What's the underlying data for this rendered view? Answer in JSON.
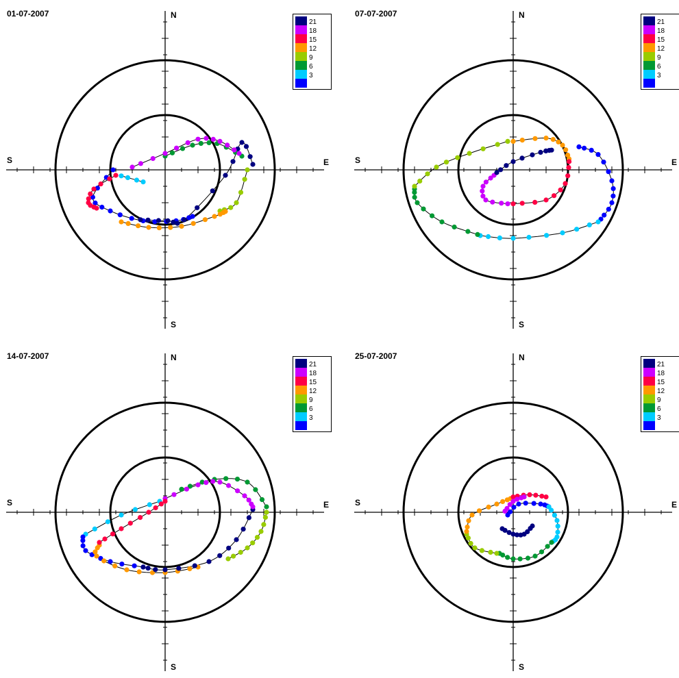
{
  "axis_labels": {
    "north": "N",
    "south": "S",
    "east": "E",
    "west": "S"
  },
  "legend": {
    "entries": [
      {
        "label": "21",
        "color": "#000080"
      },
      {
        "label": "18",
        "color": "#cc00ff"
      },
      {
        "label": "15",
        "color": "#ff0044"
      },
      {
        "label": "12",
        "color": "#ff9900"
      },
      {
        "label": "9",
        "color": "#99cc00"
      },
      {
        "label": "6",
        "color": "#009933"
      },
      {
        "label": "3",
        "color": "#00ccff"
      },
      {
        "label": "",
        "color": "#0000ff"
      }
    ]
  },
  "chart_data": [
    {
      "type": "scatter",
      "title": "01-07-2007",
      "circles": [
        1,
        2
      ],
      "xlim": [
        -3,
        3
      ],
      "ylim": [
        -3,
        3
      ],
      "grid": false,
      "legend_position": "top-right",
      "segments": [
        {
          "series": "3",
          "color": "#00ccff",
          "points": [
            [
              -0.4,
              -0.22
            ],
            [
              -0.8,
              -0.11
            ]
          ]
        },
        {
          "series": "",
          "color": "#0000ff",
          "points": [
            [
              -0.95,
              0.0
            ],
            [
              -1.32,
              -0.5
            ],
            [
              -1.0,
              -0.75
            ],
            [
              -0.4,
              -0.93
            ],
            [
              0.2,
              -0.93
            ],
            [
              0.5,
              -0.85
            ]
          ]
        },
        {
          "series": "21",
          "color": "#000080",
          "points": [
            [
              -0.45,
              -0.91
            ],
            [
              0.05,
              -0.93
            ],
            [
              0.35,
              -0.91
            ],
            [
              1.1,
              -0.1
            ],
            [
              1.4,
              0.5
            ],
            [
              1.6,
              0.1
            ]
          ]
        },
        {
          "series": "6",
          "color": "#009933",
          "points": [
            [
              0.0,
              0.25
            ],
            [
              0.5,
              0.45
            ],
            [
              0.95,
              0.48
            ],
            [
              1.4,
              0.25
            ]
          ]
        },
        {
          "series": "9",
          "color": "#99cc00",
          "points": [
            [
              1.5,
              0.0
            ],
            [
              1.3,
              -0.6
            ],
            [
              1.0,
              -0.75
            ]
          ]
        },
        {
          "series": "12",
          "color": "#ff9900",
          "points": [
            [
              -0.8,
              -0.95
            ],
            [
              -0.3,
              -1.05
            ],
            [
              0.3,
              -1.03
            ],
            [
              0.9,
              -0.85
            ],
            [
              1.1,
              -0.76
            ]
          ]
        },
        {
          "series": "15",
          "color": "#ff0044",
          "points": [
            [
              -0.9,
              -0.1
            ],
            [
              -1.3,
              -0.35
            ],
            [
              -1.4,
              -0.6
            ],
            [
              -1.25,
              -0.7
            ]
          ]
        },
        {
          "series": "18",
          "color": "#cc00ff",
          "points": [
            [
              -0.6,
              0.05
            ],
            [
              0.0,
              0.3
            ],
            [
              0.6,
              0.56
            ],
            [
              1.0,
              0.52
            ],
            [
              1.35,
              0.3
            ]
          ]
        }
      ]
    },
    {
      "type": "scatter",
      "title": "07-07-2007",
      "circles": [
        1,
        2
      ],
      "xlim": [
        -3,
        3
      ],
      "ylim": [
        -3,
        3
      ],
      "grid": false,
      "legend_position": "top-right",
      "segments": [
        {
          "series": "",
          "color": "#0000ff",
          "points": [
            [
              1.2,
              0.42
            ],
            [
              1.55,
              0.28
            ],
            [
              1.8,
              -0.2
            ],
            [
              1.8,
              -0.6
            ],
            [
              1.6,
              -0.9
            ]
          ]
        },
        {
          "series": "3",
          "color": "#00ccff",
          "points": [
            [
              1.55,
              -0.95
            ],
            [
              0.9,
              -1.15
            ],
            [
              0.0,
              -1.25
            ],
            [
              -0.6,
              -1.2
            ]
          ]
        },
        {
          "series": "6",
          "color": "#009933",
          "points": [
            [
              -0.65,
              -1.18
            ],
            [
              -1.3,
              -0.95
            ],
            [
              -1.75,
              -0.6
            ],
            [
              -1.8,
              -0.35
            ]
          ]
        },
        {
          "series": "9",
          "color": "#99cc00",
          "points": [
            [
              -1.8,
              -0.3
            ],
            [
              -1.4,
              0.05
            ],
            [
              -0.8,
              0.3
            ],
            [
              -0.1,
              0.52
            ]
          ]
        },
        {
          "series": "12",
          "color": "#ff9900",
          "points": [
            [
              0.0,
              0.52
            ],
            [
              0.6,
              0.58
            ],
            [
              0.9,
              0.45
            ],
            [
              1.02,
              0.2
            ]
          ]
        },
        {
          "series": "15",
          "color": "#ff0044",
          "points": [
            [
              1.02,
              0.15
            ],
            [
              0.95,
              -0.25
            ],
            [
              0.6,
              -0.55
            ],
            [
              0.0,
              -0.62
            ]
          ]
        },
        {
          "series": "18",
          "color": "#cc00ff",
          "points": [
            [
              -0.1,
              -0.62
            ],
            [
              -0.5,
              -0.55
            ],
            [
              -0.55,
              -0.3
            ],
            [
              -0.35,
              -0.1
            ]
          ]
        },
        {
          "series": "21",
          "color": "#000080",
          "points": [
            [
              -0.3,
              -0.05
            ],
            [
              0.0,
              0.15
            ],
            [
              0.5,
              0.32
            ],
            [
              0.7,
              0.36
            ]
          ]
        }
      ]
    },
    {
      "type": "scatter",
      "title": "14-07-2007",
      "circles": [
        1,
        2
      ],
      "xlim": [
        -3,
        3
      ],
      "ylim": [
        -3,
        3
      ],
      "grid": false,
      "legend_position": "top-right",
      "segments": [
        {
          "series": "3",
          "color": "#00ccff",
          "points": [
            [
              -0.1,
              0.2
            ],
            [
              -0.8,
              -0.05
            ],
            [
              -1.45,
              -0.4
            ]
          ]
        },
        {
          "series": "",
          "color": "#0000ff",
          "points": [
            [
              -1.5,
              -0.45
            ],
            [
              -1.45,
              -0.7
            ],
            [
              -1.0,
              -0.9
            ],
            [
              -0.4,
              -1.0
            ]
          ]
        },
        {
          "series": "12",
          "color": "#ff9900",
          "points": [
            [
              -1.2,
              -0.6
            ],
            [
              -1.25,
              -0.8
            ],
            [
              -0.7,
              -1.05
            ],
            [
              0.0,
              -1.1
            ],
            [
              0.6,
              -1.0
            ]
          ]
        },
        {
          "series": "21",
          "color": "#000080",
          "points": [
            [
              -0.4,
              -1.0
            ],
            [
              0.0,
              -1.05
            ],
            [
              0.8,
              -0.9
            ],
            [
              1.3,
              -0.5
            ],
            [
              1.6,
              0.05
            ]
          ]
        },
        {
          "series": "9",
          "color": "#99cc00",
          "points": [
            [
              1.85,
              0.0
            ],
            [
              1.75,
              -0.35
            ],
            [
              1.5,
              -0.65
            ],
            [
              1.15,
              -0.85
            ]
          ]
        },
        {
          "series": "6",
          "color": "#009933",
          "points": [
            [
              0.3,
              0.42
            ],
            [
              0.9,
              0.6
            ],
            [
              1.5,
              0.55
            ],
            [
              1.85,
              0.1
            ]
          ]
        },
        {
          "series": "18",
          "color": "#cc00ff",
          "points": [
            [
              0.0,
              0.25
            ],
            [
              0.6,
              0.5
            ],
            [
              1.0,
              0.55
            ],
            [
              1.45,
              0.3
            ],
            [
              1.6,
              0.1
            ]
          ]
        },
        {
          "series": "15",
          "color": "#ff0044",
          "points": [
            [
              -1.2,
              -0.55
            ],
            [
              -0.8,
              -0.3
            ],
            [
              -0.3,
              0.0
            ],
            [
              0.0,
              0.2
            ]
          ]
        }
      ]
    },
    {
      "type": "scatter",
      "title": "25-07-2007",
      "circles": [
        1,
        2
      ],
      "xlim": [
        -3,
        3
      ],
      "ylim": [
        -3,
        3
      ],
      "grid": false,
      "legend_position": "top-right",
      "segments": [
        {
          "series": "",
          "color": "#0000ff",
          "points": [
            [
              -0.1,
              -0.05
            ],
            [
              0.1,
              0.15
            ],
            [
              0.5,
              0.15
            ],
            [
              0.65,
              0.1
            ]
          ]
        },
        {
          "series": "3",
          "color": "#00ccff",
          "points": [
            [
              0.65,
              0.1
            ],
            [
              0.8,
              -0.15
            ],
            [
              0.8,
              -0.45
            ],
            [
              0.7,
              -0.55
            ]
          ]
        },
        {
          "series": "6",
          "color": "#009933",
          "points": [
            [
              0.7,
              -0.55
            ],
            [
              0.4,
              -0.8
            ],
            [
              0.0,
              -0.85
            ],
            [
              -0.25,
              -0.75
            ]
          ]
        },
        {
          "series": "9",
          "color": "#99cc00",
          "points": [
            [
              -0.3,
              -0.75
            ],
            [
              -0.7,
              -0.65
            ],
            [
              -0.85,
              -0.4
            ]
          ]
        },
        {
          "series": "12",
          "color": "#ff9900",
          "points": [
            [
              -0.85,
              -0.35
            ],
            [
              -0.75,
              -0.05
            ],
            [
              -0.3,
              0.15
            ],
            [
              -0.05,
              0.25
            ]
          ]
        },
        {
          "series": "15",
          "color": "#ff0044",
          "points": [
            [
              0.0,
              0.28
            ],
            [
              0.3,
              0.32
            ],
            [
              0.6,
              0.28
            ]
          ]
        },
        {
          "series": "18",
          "color": "#cc00ff",
          "points": [
            [
              -0.15,
              0.02
            ],
            [
              0.0,
              0.2
            ],
            [
              0.2,
              0.28
            ]
          ]
        },
        {
          "series": "21",
          "color": "#000080",
          "points": [
            [
              -0.2,
              -0.3
            ],
            [
              0.0,
              -0.4
            ],
            [
              0.2,
              -0.4
            ],
            [
              0.35,
              -0.25
            ]
          ]
        }
      ]
    }
  ]
}
